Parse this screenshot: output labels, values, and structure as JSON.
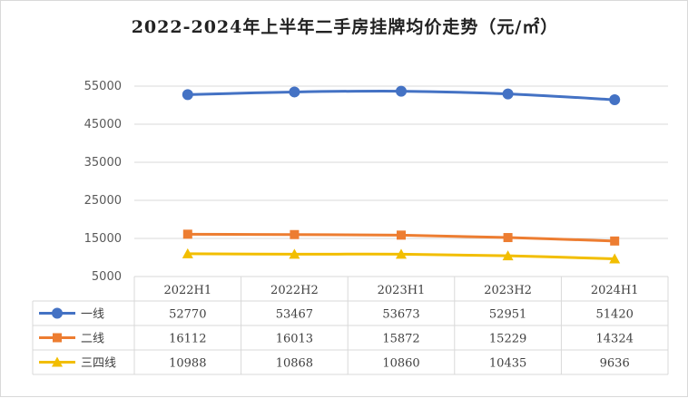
{
  "chart_data": {
    "type": "line",
    "title": "2022-2024年上半年二手房挂牌均价走势（元/㎡）",
    "categories": [
      "2022H1",
      "2022H2",
      "2023H1",
      "2023H2",
      "2024H1"
    ],
    "y_ticks": [
      "55000",
      "45000",
      "35000",
      "25000",
      "15000",
      "5000"
    ],
    "ylim": [
      5000,
      55000
    ],
    "grid": true,
    "legend": "data-table",
    "series": [
      {
        "name": "一线",
        "color": "#4472C4",
        "marker": "circle",
        "values": [
          52770,
          53467,
          53673,
          52951,
          51420
        ]
      },
      {
        "name": "二线",
        "color": "#ED7D31",
        "marker": "square",
        "values": [
          16112,
          16013,
          15872,
          15229,
          14324
        ]
      },
      {
        "name": "三四线",
        "color": "#F2BE00",
        "marker": "triangle",
        "values": [
          10988,
          10868,
          10860,
          10435,
          9636
        ]
      }
    ]
  }
}
